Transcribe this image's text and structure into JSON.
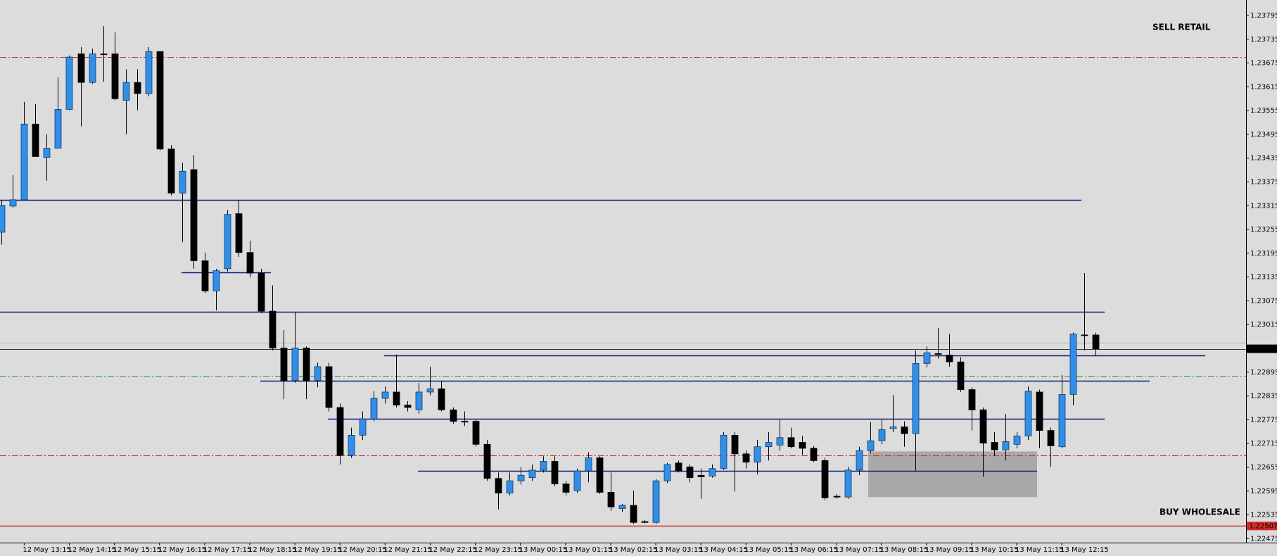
{
  "chart_data": {
    "type": "candlestick",
    "up_color": "#2f8fea",
    "down_color": "#000000",
    "ylim": [
      1.22465,
      1.23834
    ],
    "yticks": [
      1.23795,
      1.23735,
      1.23675,
      1.23615,
      1.23555,
      1.23495,
      1.23435,
      1.23375,
      1.23315,
      1.23255,
      1.23195,
      1.23135,
      1.23075,
      1.23015,
      1.22895,
      1.22835,
      1.22775,
      1.22715,
      1.22655,
      1.22595,
      1.22535,
      1.22475
    ],
    "categories": [
      null,
      null,
      "12 May 13:15",
      null,
      null,
      null,
      "12 May 14:15",
      null,
      null,
      null,
      "12 May 15:15",
      null,
      null,
      null,
      "12 May 16:15",
      null,
      null,
      null,
      "12 May 17:15",
      null,
      null,
      null,
      "12 May 18:15",
      null,
      null,
      null,
      "12 May 19:15",
      null,
      null,
      null,
      "12 May 20:15",
      null,
      null,
      null,
      "12 May 21:15",
      null,
      null,
      null,
      "12 May 22:15",
      null,
      null,
      null,
      "12 May 23:15",
      null,
      null,
      null,
      "13 May 00:15",
      null,
      null,
      null,
      "13 May 01:15",
      null,
      null,
      null,
      "13 May 02:15",
      null,
      null,
      null,
      "13 May 03:15",
      null,
      null,
      null,
      "13 May 04:15",
      null,
      null,
      null,
      "13 May 05:15",
      null,
      null,
      null,
      "13 May 06:15",
      null,
      null,
      null,
      "13 May 07:15",
      null,
      null,
      null,
      "13 May 08:15",
      null,
      null,
      null,
      "13 May 09:15",
      null,
      null,
      null,
      "13 May 10:15",
      null,
      null,
      null,
      "13 May 11:15",
      null,
      null,
      null,
      "13 May 12:15",
      null,
      null,
      null
    ],
    "open": [
      1.23248,
      1.23314,
      1.2333,
      1.23521,
      1.23437,
      1.2346,
      1.23558,
      1.23698,
      1.23626,
      1.23698,
      1.23698,
      1.23581,
      1.23626,
      1.23598,
      1.23704,
      1.23458,
      1.23347,
      1.23406,
      1.23176,
      1.231,
      1.23156,
      1.23295,
      1.23197,
      1.23145,
      1.23049,
      1.22956,
      1.22874,
      1.22956,
      1.22874,
      1.22909,
      1.22806,
      1.22685,
      1.22736,
      1.22777,
      1.22829,
      1.22845,
      1.22812,
      1.228,
      1.22845,
      1.22853,
      1.228,
      1.22771,
      1.22771,
      1.22713,
      1.22627,
      1.2259,
      1.22621,
      1.22629,
      1.22648,
      1.2267,
      1.22613,
      1.22596,
      1.22646,
      1.22679,
      1.22592,
      1.22551,
      1.22559,
      1.22518,
      1.22516,
      1.22621,
      1.22666,
      1.22656,
      1.22635,
      1.22633,
      1.22652,
      1.22736,
      1.22689,
      1.22668,
      1.22707,
      1.22711,
      1.2273,
      1.22718,
      1.22703,
      1.22672,
      1.22582,
      1.2258,
      1.22648,
      1.22697,
      1.22722,
      1.22753,
      1.22757,
      1.2274,
      1.22917,
      1.22942,
      1.22938,
      1.22921,
      1.22851,
      1.228,
      1.22718,
      1.22699,
      1.22713,
      1.22734,
      1.22845,
      1.22748,
      1.22707,
      1.22839,
      1.22989,
      1.22989
    ],
    "high": [
      1.2333,
      1.23392,
      1.23577,
      1.23571,
      1.23495,
      1.23639,
      1.23694,
      1.23715,
      1.23711,
      1.23768,
      1.23752,
      1.23659,
      1.23659,
      1.23715,
      1.23704,
      1.23468,
      1.23423,
      1.23443,
      1.23197,
      1.23156,
      1.23304,
      1.2333,
      1.23227,
      1.23156,
      1.23114,
      1.23001,
      1.23047,
      1.2296,
      1.22919,
      1.22919,
      1.22816,
      1.22755,
      1.22796,
      1.22847,
      1.22859,
      1.2294,
      1.22822,
      1.22868,
      1.22909,
      1.22872,
      1.22806,
      1.22796,
      1.22775,
      1.22724,
      1.22642,
      1.22642,
      1.22656,
      1.22662,
      1.22683,
      1.22683,
      1.22621,
      1.22652,
      1.22693,
      1.22683,
      1.22642,
      1.22563,
      1.22596,
      1.22522,
      1.22625,
      1.22666,
      1.22672,
      1.22662,
      1.22652,
      1.22662,
      1.22744,
      1.22744,
      1.22697,
      1.22724,
      1.22744,
      1.22775,
      1.22755,
      1.22734,
      1.22709,
      1.22679,
      1.22588,
      1.22656,
      1.22707,
      1.22769,
      1.22775,
      1.22837,
      1.22771,
      1.2295,
      1.2296,
      1.23007,
      1.22991,
      1.22933,
      1.22857,
      1.22806,
      1.22744,
      1.2279,
      1.22744,
      1.22859,
      1.22851,
      1.22755,
      1.22888,
      1.22995,
      1.23145,
      1.22995
    ],
    "low": [
      1.23217,
      1.2331,
      1.2333,
      1.23439,
      1.23378,
      1.2346,
      1.23556,
      1.23515,
      1.23622,
      1.23628,
      1.23581,
      1.23495,
      1.23556,
      1.23591,
      1.23454,
      1.23341,
      1.23223,
      1.23156,
      1.23094,
      1.23051,
      1.23149,
      1.23186,
      1.23135,
      1.23044,
      1.2295,
      1.22827,
      1.22868,
      1.22827,
      1.22857,
      1.22796,
      1.22662,
      1.22679,
      1.22724,
      1.22771,
      1.22816,
      1.22806,
      1.22796,
      1.2279,
      1.22837,
      1.22796,
      1.22765,
      1.22759,
      1.22707,
      1.22621,
      1.22549,
      1.22584,
      1.22611,
      1.22621,
      1.22642,
      1.22607,
      1.22584,
      1.2259,
      1.22617,
      1.22588,
      1.22545,
      1.22543,
      1.22512,
      1.22514,
      1.22512,
      1.22615,
      1.22642,
      1.22617,
      1.22576,
      1.22629,
      1.22648,
      1.22594,
      1.22652,
      1.22637,
      1.22672,
      1.22697,
      1.22703,
      1.22687,
      1.22668,
      1.22572,
      1.22576,
      1.22576,
      1.22635,
      1.22691,
      1.22713,
      1.22744,
      1.22707,
      1.22646,
      1.22907,
      1.22929,
      1.22909,
      1.22845,
      1.22748,
      1.22631,
      1.22683,
      1.22672,
      1.22703,
      1.22724,
      1.22703,
      1.22656,
      1.22703,
      1.22812,
      1.2295,
      1.22936
    ],
    "close": [
      1.23316,
      1.2333,
      1.23521,
      1.23439,
      1.2346,
      1.23558,
      1.2369,
      1.23626,
      1.23698,
      1.23696,
      1.23585,
      1.23626,
      1.23598,
      1.23704,
      1.23458,
      1.23347,
      1.23402,
      1.23176,
      1.231,
      1.23151,
      1.23293,
      1.23197,
      1.23145,
      1.23049,
      1.22956,
      1.22874,
      1.22956,
      1.22874,
      1.22909,
      1.22806,
      1.22685,
      1.22736,
      1.22777,
      1.22829,
      1.22845,
      1.22812,
      1.22806,
      1.22845,
      1.22853,
      1.228,
      1.22771,
      1.22769,
      1.22713,
      1.22627,
      1.2259,
      1.22621,
      1.22635,
      1.22648,
      1.2267,
      1.22613,
      1.22592,
      1.22646,
      1.22679,
      1.22592,
      1.22555,
      1.22559,
      1.22516,
      1.22516,
      1.22621,
      1.22662,
      1.22646,
      1.22629,
      1.22631,
      1.22652,
      1.22736,
      1.22689,
      1.22668,
      1.22707,
      1.22718,
      1.2273,
      1.22707,
      1.22703,
      1.22672,
      1.22578,
      1.2258,
      1.22648,
      1.22697,
      1.22722,
      1.2275,
      1.22757,
      1.2274,
      1.22917,
      1.22944,
      1.2294,
      1.22921,
      1.22851,
      1.228,
      1.22716,
      1.22699,
      1.2272,
      1.22734,
      1.22847,
      1.22748,
      1.22709,
      1.22839,
      1.22991,
      1.22989,
      1.22954
    ],
    "levels": [
      {
        "value": 1.2369,
        "color": "#d42a2a",
        "style": "dash-dot"
      },
      {
        "value": 1.2333,
        "color": "#0a1a7a",
        "style": "solid"
      },
      {
        "value": 1.23147,
        "color": "#0a1a7a",
        "style": "solid"
      },
      {
        "value": 1.23047,
        "color": "#0a1a7a",
        "style": "solid"
      },
      {
        "value": 1.2297,
        "color": "#c4c4c4",
        "style": "solid"
      },
      {
        "value": 1.22938,
        "color": "#0a1a7a",
        "style": "solid"
      },
      {
        "value": 1.22886,
        "color": "#2a9a2a",
        "style": "dash-dot"
      },
      {
        "value": 1.22874,
        "color": "#0a1a7a",
        "style": "solid"
      },
      {
        "value": 1.22777,
        "color": "#0a1a7a",
        "style": "solid"
      },
      {
        "value": 1.22685,
        "color": "#d42a2a",
        "style": "dash-dot"
      },
      {
        "value": 1.22646,
        "color": "#0a1a7a",
        "style": "solid"
      },
      {
        "value": 1.22507,
        "color": "#d42a2a",
        "style": "solid"
      }
    ],
    "zone": [
      1.2258,
      1.22695
    ],
    "zone_color": "#a9a9a9",
    "current_price": 1.22954,
    "marked_price": 1.22507,
    "annotations": [
      "SELL RETAIL",
      "BUY WHOLESALE"
    ]
  }
}
